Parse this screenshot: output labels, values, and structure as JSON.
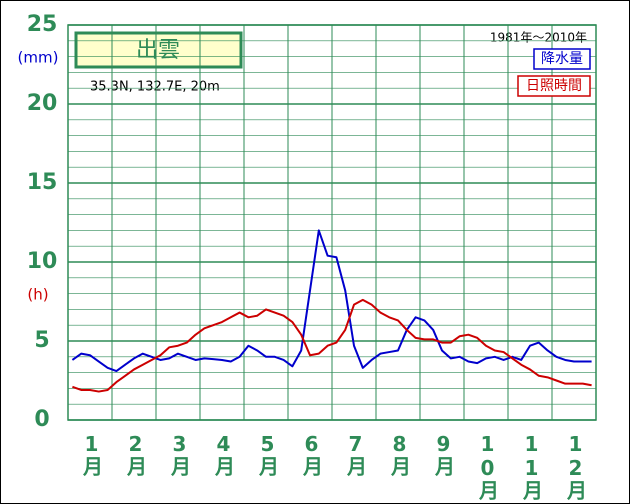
{
  "chart_data": {
    "type": "line",
    "title": "出雲",
    "subtitle": "35.3N,  132.7E,  20m",
    "period": "1981年〜2010年",
    "y_unit_labels": [
      {
        "text": "(mm)",
        "color": "#0000cc"
      },
      {
        "text": "(h)",
        "color": "#cc0000"
      }
    ],
    "categories": [
      null,
      null,
      "1月",
      null,
      null,
      null,
      null,
      "2月",
      null,
      null,
      null,
      null,
      "3月",
      null,
      null,
      null,
      null,
      "4月",
      null,
      null,
      null,
      null,
      "5月",
      null,
      null,
      null,
      null,
      "6月",
      null,
      null,
      null,
      null,
      "7月",
      null,
      null,
      null,
      null,
      "8月",
      null,
      null,
      null,
      null,
      "9月",
      null,
      null,
      null,
      null,
      "10月",
      null,
      null,
      null,
      null,
      "11月",
      null,
      null,
      null,
      null,
      "12月",
      null,
      null
    ],
    "series": [
      {
        "name": "降水量",
        "color": "#0000cc",
        "values": [
          3.8,
          4.2,
          4.1,
          3.7,
          3.3,
          3.1,
          3.5,
          3.9,
          4.2,
          4.0,
          3.8,
          3.9,
          4.2,
          4.0,
          3.8,
          3.9,
          3.85,
          3.8,
          3.7,
          4.0,
          4.7,
          4.4,
          4.0,
          4.0,
          3.8,
          3.4,
          4.4,
          8.2,
          12.0,
          10.4,
          10.3,
          8.2,
          4.7,
          3.3,
          3.8,
          4.2,
          4.3,
          4.4,
          5.7,
          6.5,
          6.3,
          5.7,
          4.4,
          3.9,
          4.0,
          3.7,
          3.6,
          3.9,
          4.0,
          3.8,
          4.0,
          3.8,
          4.7,
          4.9,
          4.4,
          4.0,
          3.8,
          3.7,
          3.7,
          3.7
        ]
      },
      {
        "name": "日照時間",
        "color": "#cc0000",
        "values": [
          2.1,
          1.9,
          1.9,
          1.8,
          1.9,
          2.4,
          2.8,
          3.2,
          3.5,
          3.8,
          4.1,
          4.6,
          4.7,
          4.9,
          5.4,
          5.8,
          6.0,
          6.2,
          6.5,
          6.8,
          6.5,
          6.6,
          7.0,
          6.8,
          6.6,
          6.2,
          5.4,
          4.1,
          4.2,
          4.7,
          4.9,
          5.7,
          7.3,
          7.6,
          7.3,
          6.8,
          6.5,
          6.3,
          5.7,
          5.2,
          5.1,
          5.1,
          4.9,
          4.9,
          5.3,
          5.4,
          5.2,
          4.7,
          4.4,
          4.3,
          3.9,
          3.5,
          3.2,
          2.8,
          2.7,
          2.5,
          2.3,
          2.3,
          2.3,
          2.2
        ]
      }
    ],
    "ylim": [
      0,
      25
    ],
    "yticks": [
      0,
      5,
      10,
      15,
      20,
      25
    ],
    "y_minor_ticks": [
      1,
      2,
      3,
      4,
      6,
      7,
      8,
      9,
      11,
      12,
      13,
      14,
      16,
      17,
      18,
      19,
      21,
      22,
      23,
      24
    ],
    "grid": true,
    "grid_color": "#2e8b57"
  }
}
